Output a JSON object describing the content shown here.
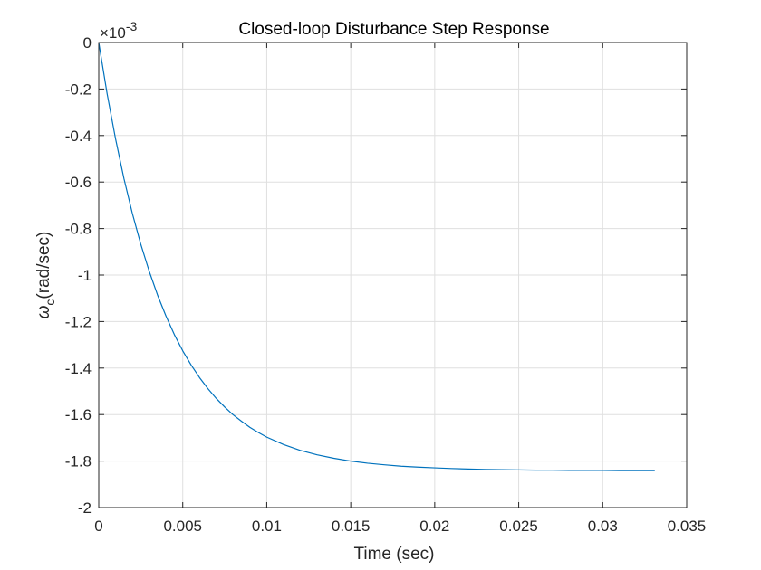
{
  "chart_data": {
    "type": "line",
    "title": "Closed-loop Disturbance Step Response",
    "xlabel": "Time (sec)",
    "ylabel_symbol": "ω",
    "ylabel_subscript": "c",
    "ylabel_unit": "(rad/sec)",
    "y_exponent_base": "×10",
    "y_exponent_power": "-3",
    "xlim": [
      0,
      0.035
    ],
    "ylim": [
      -2,
      0
    ],
    "xticks": [
      0,
      0.005,
      0.01,
      0.015,
      0.02,
      0.025,
      0.03,
      0.035
    ],
    "xtick_labels": [
      "0",
      "0.005",
      "0.01",
      "0.015",
      "0.02",
      "0.025",
      "0.03",
      "0.035"
    ],
    "yticks": [
      0,
      -0.2,
      -0.4,
      -0.6,
      -0.8,
      -1,
      -1.2,
      -1.4,
      -1.6,
      -1.8,
      -2
    ],
    "ytick_labels": [
      "0",
      "-0.2",
      "-0.4",
      "-0.6",
      "-0.8",
      "-1",
      "-1.2",
      "-1.4",
      "-1.6",
      "-1.8",
      "-2"
    ],
    "grid": true,
    "box": true,
    "series": [
      {
        "color": "#0072BD",
        "x": [
          0,
          0.0005,
          0.001,
          0.0015,
          0.002,
          0.0025,
          0.003,
          0.0035,
          0.004,
          0.0045,
          0.005,
          0.0055,
          0.006,
          0.0065,
          0.007,
          0.0075,
          0.008,
          0.0085,
          0.009,
          0.0095,
          0.01,
          0.011,
          0.012,
          0.013,
          0.014,
          0.015,
          0.016,
          0.017,
          0.018,
          0.019,
          0.02,
          0.021,
          0.022,
          0.023,
          0.024,
          0.025,
          0.026,
          0.027,
          0.028,
          0.029,
          0.03,
          0.031,
          0.032,
          0.0331
        ],
        "values": [
          0,
          -0.221,
          -0.414,
          -0.585,
          -0.735,
          -0.867,
          -0.983,
          -1.086,
          -1.176,
          -1.256,
          -1.326,
          -1.387,
          -1.441,
          -1.489,
          -1.531,
          -1.568,
          -1.601,
          -1.629,
          -1.655,
          -1.677,
          -1.697,
          -1.729,
          -1.754,
          -1.773,
          -1.788,
          -1.8,
          -1.809,
          -1.816,
          -1.822,
          -1.826,
          -1.829,
          -1.832,
          -1.834,
          -1.836,
          -1.837,
          -1.838,
          -1.839,
          -1.839,
          -1.84,
          -1.84,
          -1.84,
          -1.841,
          -1.841,
          -1.841
        ]
      }
    ]
  }
}
